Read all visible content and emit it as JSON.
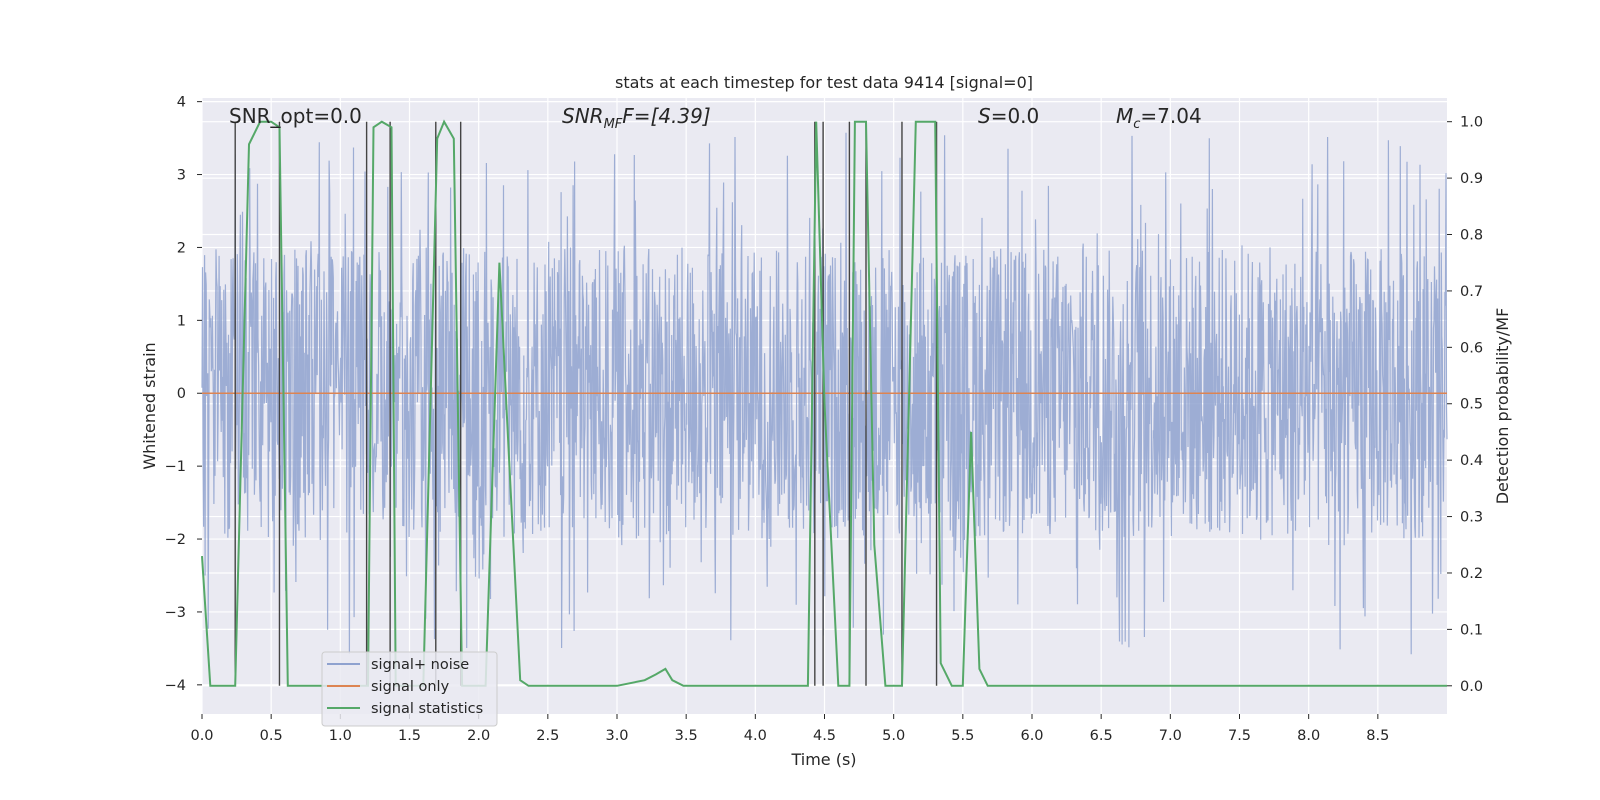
{
  "chart_data": {
    "type": "line",
    "title": "stats at each timestep for test data 9414 [signal=0]",
    "xlabel": "Time (s)",
    "ylabel": "Whitened strain",
    "y2label": "Detection probability/MF",
    "xlim": [
      0.0,
      9.0
    ],
    "ylim": [
      -4.4,
      4.05
    ],
    "y2lim": [
      -0.05,
      1.042
    ],
    "xticks": [
      "0.0",
      "0.5",
      "1.0",
      "1.5",
      "2.0",
      "2.5",
      "3.0",
      "3.5",
      "4.0",
      "4.5",
      "5.0",
      "5.5",
      "6.0",
      "6.5",
      "7.0",
      "7.5",
      "8.0",
      "8.5"
    ],
    "yticks": [
      "−4",
      "−3",
      "−2",
      "−1",
      "0",
      "1",
      "2",
      "3",
      "4"
    ],
    "y2ticks": [
      "0.0",
      "0.1",
      "0.2",
      "0.3",
      "0.4",
      "0.5",
      "0.6",
      "0.7",
      "0.8",
      "0.9",
      "1.0"
    ],
    "annotations": {
      "snr_opt": "SNR_opt=0.0",
      "snr_mf_main": "SNR",
      "snr_mf_sub": "MF",
      "snr_mf_rest": "F=[4.39]",
      "s_italic": "S",
      "s_rest": "=0.0",
      "mc_italic": "M",
      "mc_sub": "c",
      "mc_rest": "=7.04"
    },
    "legend": {
      "location": "lower left",
      "entries": [
        {
          "name": "signal+ noise",
          "color": "#8fa2cf"
        },
        {
          "name": "signal only",
          "color": "#dd8452"
        },
        {
          "name": "signal statistics",
          "color": "#55a868"
        }
      ]
    },
    "series": [
      {
        "name": "signal+ noise",
        "axis": "left",
        "color": "#8fa2cf",
        "description": "whitened noise, envelope approx +/- 2 with spikes to +/- 3.6",
        "envelope": 2.0,
        "spike_max": 3.6
      },
      {
        "name": "signal only",
        "axis": "left",
        "color": "#dd8452",
        "x": [
          0.0,
          9.0
        ],
        "values": [
          0.0,
          0.0
        ]
      },
      {
        "name": "signal statistics",
        "axis": "right",
        "color": "#55a868",
        "x": [
          0.0,
          0.06,
          0.24,
          0.34,
          0.42,
          0.5,
          0.56,
          0.62,
          0.78,
          1.2,
          1.24,
          1.3,
          1.37,
          1.4,
          1.46,
          1.6,
          1.7,
          1.75,
          1.82,
          1.88,
          1.95,
          2.05,
          2.15,
          2.2,
          2.3,
          2.36,
          2.42,
          2.6,
          3.0,
          3.2,
          3.28,
          3.35,
          3.4,
          3.48,
          3.56,
          4.2,
          4.38,
          4.44,
          4.5,
          4.6,
          4.68,
          4.72,
          4.8,
          4.86,
          4.94,
          4.99,
          5.06,
          5.16,
          5.3,
          5.34,
          5.42,
          5.5,
          5.56,
          5.62,
          5.68,
          5.74,
          6.0,
          7.0,
          7.5,
          8.0,
          9.0
        ],
        "values": [
          0.23,
          0.0,
          0.0,
          0.96,
          1.0,
          1.0,
          0.99,
          0.0,
          0.0,
          0.0,
          0.99,
          1.0,
          0.99,
          0.0,
          0.0,
          0.0,
          0.97,
          1.0,
          0.97,
          0.0,
          0.0,
          0.0,
          0.75,
          0.5,
          0.01,
          0.0,
          0.0,
          0.0,
          0.0,
          0.01,
          0.02,
          0.03,
          0.01,
          0.0,
          0.0,
          0.0,
          0.0,
          1.0,
          0.5,
          0.0,
          0.0,
          1.0,
          1.0,
          0.25,
          0.0,
          0.0,
          0.0,
          1.0,
          1.0,
          0.04,
          0.0,
          0.0,
          0.45,
          0.03,
          0.0,
          0.0,
          0.0,
          0.0,
          0.0,
          0.0,
          0.0
        ]
      }
    ],
    "vertical_lines": {
      "color": "#444444",
      "x": [
        0.24,
        0.56,
        1.19,
        1.36,
        1.69,
        1.87,
        4.43,
        4.49,
        4.68,
        4.8,
        5.06,
        5.31
      ]
    }
  }
}
